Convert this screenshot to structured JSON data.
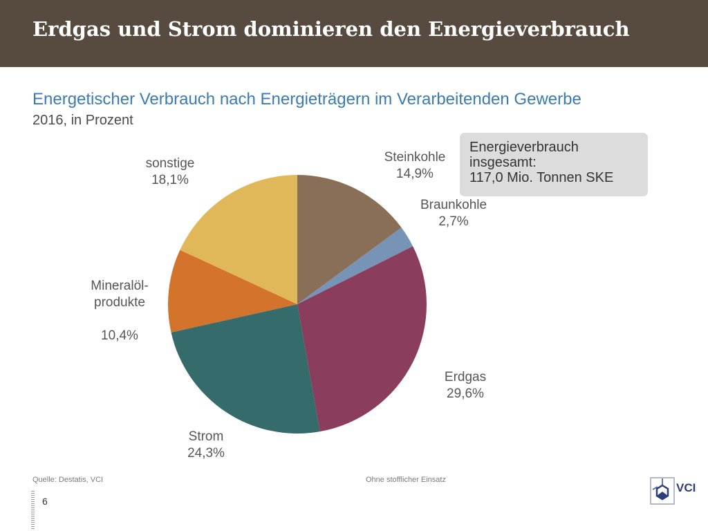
{
  "header": {
    "title": "Erdgas und Strom dominieren den Energieverbrauch"
  },
  "info_box": {
    "line1": "Energieverbrauch",
    "line2": "insgesamt:",
    "line3": "117,0 Mio. Tonnen SKE"
  },
  "chart_data": {
    "type": "pie",
    "title": "Energetischer Verbrauch nach Energieträgern im Verarbeitenden Gewerbe",
    "subtitle": "2016, in Prozent",
    "slices": [
      {
        "label": "Steinkohle",
        "value": 14.9,
        "display": "14,9%",
        "color": "#8a6f58"
      },
      {
        "label": "Braunkohle",
        "value": 2.7,
        "display": "2,7%",
        "color": "#7793b5"
      },
      {
        "label": "Erdgas",
        "value": 29.6,
        "display": "29,6%",
        "color": "#8b3d5e"
      },
      {
        "label": "Strom",
        "value": 24.3,
        "display": "24,3%",
        "color": "#366b6b"
      },
      {
        "label": "Mineralöl-\nprodukte",
        "value": 10.4,
        "display": "10,4%",
        "color": "#d4732b"
      },
      {
        "label": "sonstige",
        "value": 18.1,
        "display": "18,1%",
        "color": "#e0b85a"
      }
    ]
  },
  "footer": {
    "source": "Quelle: Destatis, VCI",
    "note": "Ohne stofflicher Einsatz",
    "page_number": "6",
    "logo_text": "VCI"
  }
}
